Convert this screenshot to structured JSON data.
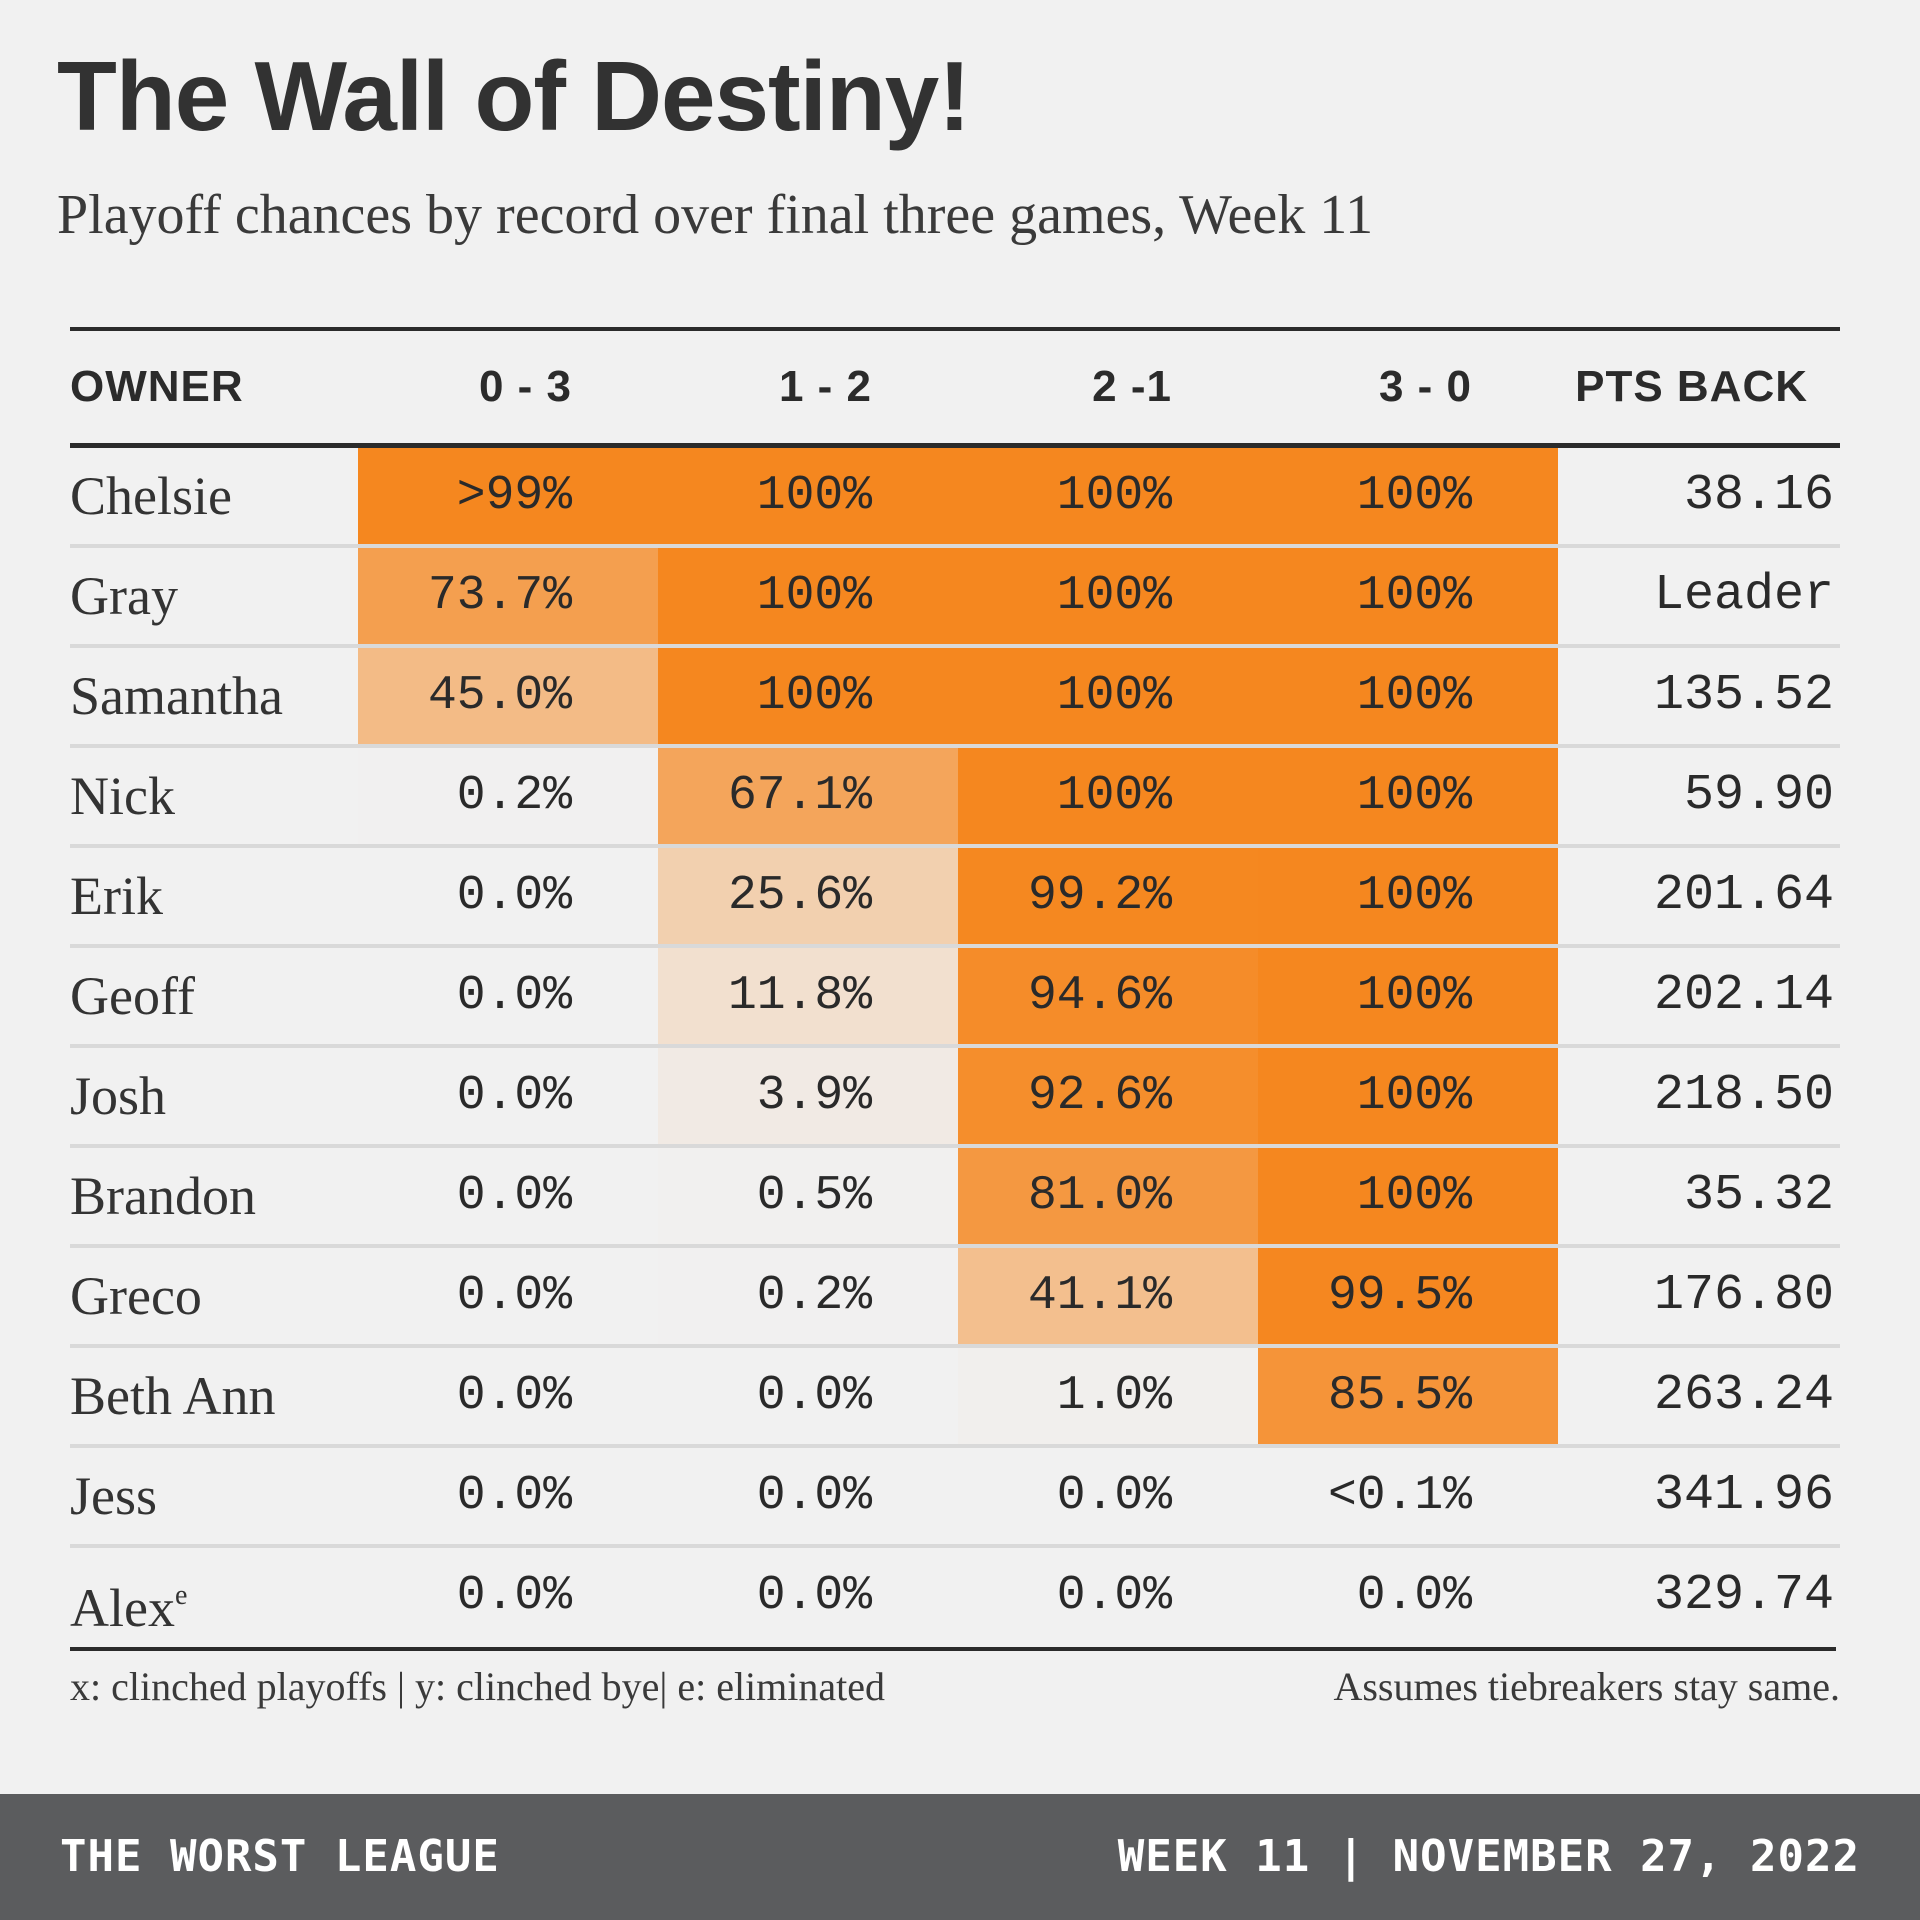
{
  "header": {
    "title": "The Wall of Destiny!",
    "subtitle": "Playoff chances by record over final three games, Week 11"
  },
  "chart_data": {
    "type": "table",
    "title": "The Wall of Destiny!",
    "subtitle": "Playoff chances by record over final three games, Week 11",
    "columns": [
      "OWNER",
      "0 - 3",
      "1 - 2",
      "2 -1",
      "3 - 0",
      "PTS BACK"
    ],
    "rows": [
      {
        "owner": "Chelsie",
        "marker": "",
        "labels": [
          ">99%",
          "100%",
          "100%",
          "100%"
        ],
        "values": [
          99.9,
          100,
          100,
          100
        ],
        "pts_back": "38.16"
      },
      {
        "owner": "Gray",
        "marker": "",
        "labels": [
          "73.7%",
          "100%",
          "100%",
          "100%"
        ],
        "values": [
          73.7,
          100,
          100,
          100
        ],
        "pts_back": "Leader"
      },
      {
        "owner": "Samantha",
        "marker": "",
        "labels": [
          "45.0%",
          "100%",
          "100%",
          "100%"
        ],
        "values": [
          45.0,
          100,
          100,
          100
        ],
        "pts_back": "135.52"
      },
      {
        "owner": "Nick",
        "marker": "",
        "labels": [
          "0.2%",
          "67.1%",
          "100%",
          "100%"
        ],
        "values": [
          0.2,
          67.1,
          100,
          100
        ],
        "pts_back": "59.90"
      },
      {
        "owner": "Erik",
        "marker": "",
        "labels": [
          "0.0%",
          "25.6%",
          "99.2%",
          "100%"
        ],
        "values": [
          0.0,
          25.6,
          99.2,
          100
        ],
        "pts_back": "201.64"
      },
      {
        "owner": "Geoff",
        "marker": "",
        "labels": [
          "0.0%",
          "11.8%",
          "94.6%",
          "100%"
        ],
        "values": [
          0.0,
          11.8,
          94.6,
          100
        ],
        "pts_back": "202.14"
      },
      {
        "owner": "Josh",
        "marker": "",
        "labels": [
          "0.0%",
          "3.9%",
          "92.6%",
          "100%"
        ],
        "values": [
          0.0,
          3.9,
          92.6,
          100
        ],
        "pts_back": "218.50"
      },
      {
        "owner": "Brandon",
        "marker": "",
        "labels": [
          "0.0%",
          "0.5%",
          "81.0%",
          "100%"
        ],
        "values": [
          0.0,
          0.5,
          81.0,
          100
        ],
        "pts_back": "35.32"
      },
      {
        "owner": "Greco",
        "marker": "",
        "labels": [
          "0.0%",
          "0.2%",
          "41.1%",
          "99.5%"
        ],
        "values": [
          0.0,
          0.2,
          41.1,
          99.5
        ],
        "pts_back": "176.80"
      },
      {
        "owner": "Beth Ann",
        "marker": "",
        "labels": [
          "0.0%",
          "0.0%",
          "1.0%",
          "85.5%"
        ],
        "values": [
          0.0,
          0.0,
          1.0,
          85.5
        ],
        "pts_back": "263.24"
      },
      {
        "owner": "Jess",
        "marker": "",
        "labels": [
          "0.0%",
          "0.0%",
          "0.0%",
          "<0.1%"
        ],
        "values": [
          0.0,
          0.0,
          0.0,
          0.05
        ],
        "pts_back": "341.96"
      },
      {
        "owner": "Alex",
        "marker": "e",
        "labels": [
          "0.0%",
          "0.0%",
          "0.0%",
          "0.0%"
        ],
        "values": [
          0.0,
          0.0,
          0.0,
          0.0
        ],
        "pts_back": "329.74"
      }
    ],
    "color_scale": {
      "low": "#f1f1f1",
      "high": "#f5871f"
    }
  },
  "notes": {
    "legend": "x: clinched playoffs | y: clinched bye| e: eliminated",
    "tiebreak": "Assumes tiebreakers stay same."
  },
  "footer": {
    "league": "THE WORST LEAGUE",
    "date": "WEEK 11 | NOVEMBER 27, 2022"
  }
}
